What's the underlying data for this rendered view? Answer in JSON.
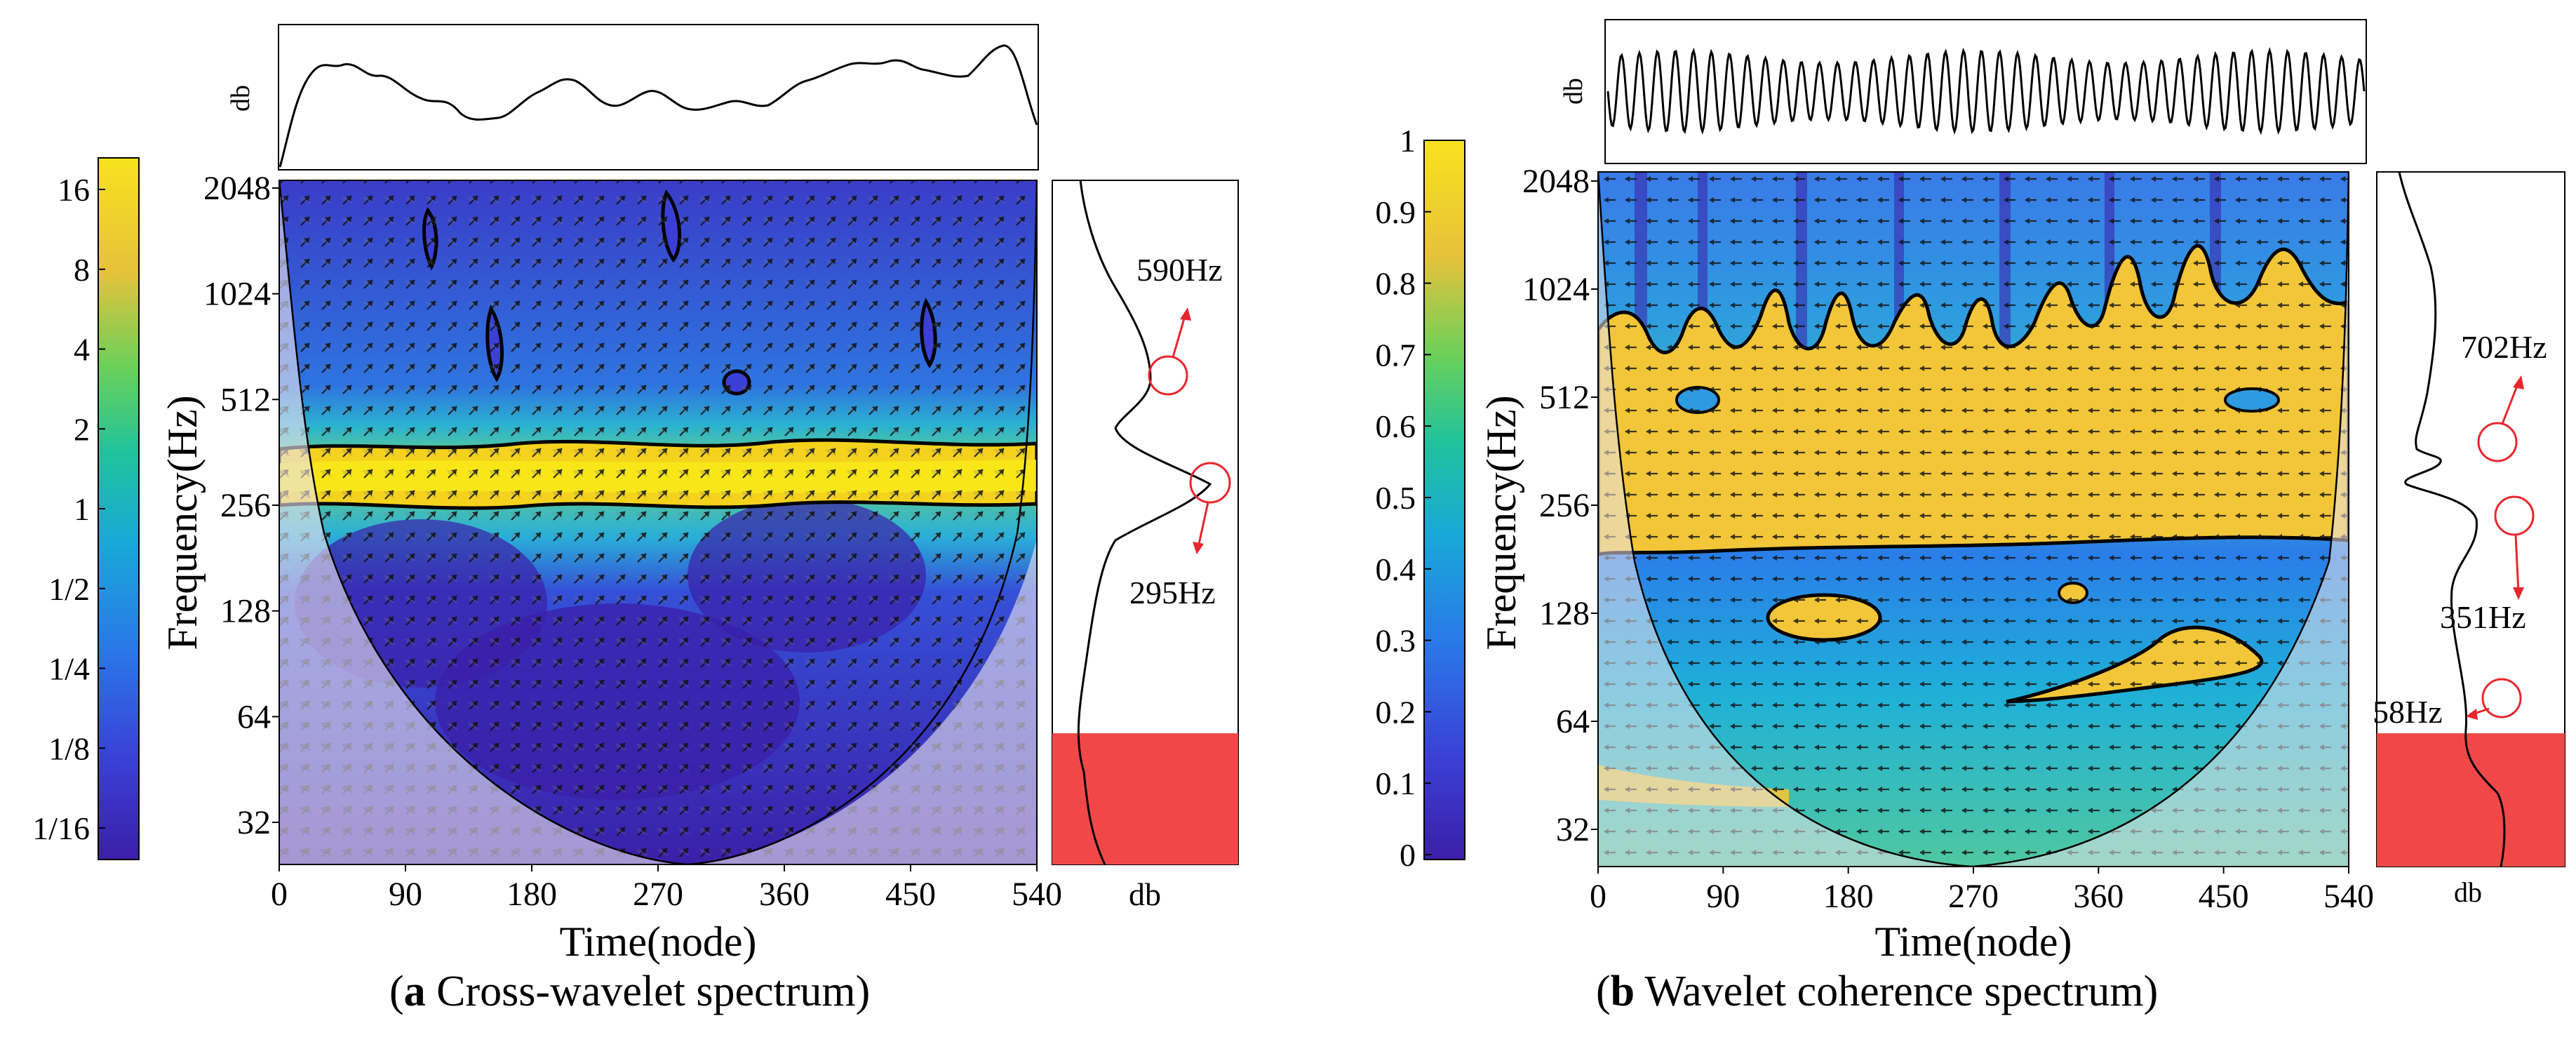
{
  "figure": {
    "caption_a": {
      "letter": "a",
      "text": " Cross-wavelet spectrum"
    },
    "caption_b": {
      "letter": "b",
      "text": " Wavelet coherence spectrum"
    }
  },
  "colors": {
    "colormap": [
      "#3b1fa8",
      "#3b3fd6",
      "#2a78e8",
      "#18a8d8",
      "#20c39c",
      "#6ad05a",
      "#e8c23a",
      "#f7e21e"
    ],
    "annotation": "#e8262d",
    "bottom_box": "#f04848",
    "contour": "#000000"
  },
  "chart_data": [
    {
      "type": "heatmap",
      "id": "a",
      "xlabel": "Time(node)",
      "ylabel": "Frequency(Hz)",
      "x_ticks": [
        "0",
        "90",
        "180",
        "270",
        "360",
        "450",
        "540"
      ],
      "y_ticks": [
        "2048",
        "1024",
        "512",
        "256",
        "128",
        "64",
        "32"
      ],
      "xlim": [
        0,
        540
      ],
      "colorbar_ticks": [
        "16",
        "8",
        "4",
        "2",
        "1",
        "1/2",
        "1/4",
        "1/8",
        "1/16"
      ],
      "top_panel": {
        "ylabel": "db"
      },
      "side_panel": {
        "xlabel": "db"
      },
      "annotations": [
        {
          "text": "590Hz"
        },
        {
          "text": "295Hz"
        }
      ],
      "high_power_band_hz": [
        230,
        370
      ]
    },
    {
      "type": "heatmap",
      "id": "b",
      "xlabel": "Time(node)",
      "ylabel": "Frequency(Hz)",
      "x_ticks": [
        "0",
        "90",
        "180",
        "270",
        "360",
        "450",
        "540"
      ],
      "y_ticks": [
        "2048",
        "1024",
        "512",
        "256",
        "128",
        "64",
        "32"
      ],
      "xlim": [
        0,
        540
      ],
      "colorbar_ticks": [
        "1",
        "0.9",
        "0.8",
        "0.7",
        "0.6",
        "0.5",
        "0.4",
        "0.3",
        "0.2",
        "0.1",
        "0"
      ],
      "top_panel": {
        "ylabel": "db"
      },
      "side_panel": {
        "xlabel": "db"
      },
      "annotations": [
        {
          "text": "702Hz"
        },
        {
          "text": "351Hz"
        },
        {
          "text": "58Hz"
        }
      ],
      "high_coherence_band_hz": [
        200,
        700
      ]
    }
  ]
}
